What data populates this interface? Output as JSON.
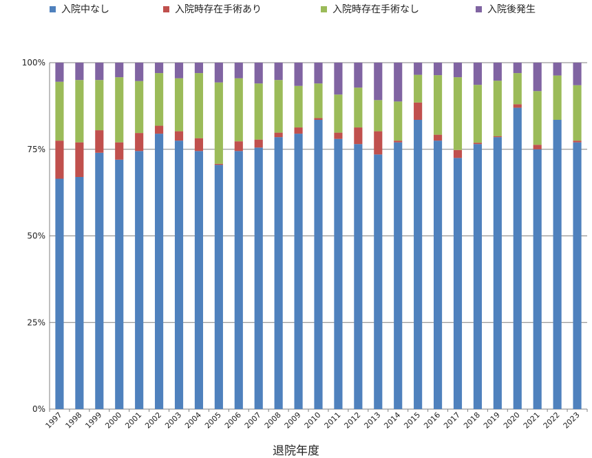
{
  "chart_data": {
    "type": "bar",
    "stacked": true,
    "xlabel": "退院年度",
    "ylabel": "",
    "ylim": [
      0,
      100
    ],
    "y_ticks": [
      "0%",
      "25%",
      "50%",
      "75%",
      "100%"
    ],
    "grid": true,
    "legend_position": "top",
    "categories": [
      "1997",
      "1998",
      "1999",
      "2000",
      "2001",
      "2002",
      "2003",
      "2004",
      "2005",
      "2006",
      "2007",
      "2008",
      "2009",
      "2010",
      "2011",
      "2012",
      "2013",
      "2014",
      "2015",
      "2016",
      "2017",
      "2018",
      "2019",
      "2020",
      "2021",
      "2022",
      "2023"
    ],
    "series": [
      {
        "name": "入院中なし",
        "color": "#4F81BD",
        "values": [
          66.5,
          67,
          74,
          72,
          74.5,
          79.5,
          77.5,
          74.5,
          70.5,
          74.5,
          75.5,
          78.5,
          79.5,
          83.5,
          78,
          76.5,
          73.5,
          77,
          83.5,
          77.5,
          72.5,
          76.5,
          78.5,
          87,
          75,
          83.5,
          77
        ]
      },
      {
        "name": "入院時存在手術あり",
        "color": "#C0504D",
        "values": [
          11,
          10,
          6.5,
          5,
          5.2,
          2.3,
          2.7,
          3.7,
          0.3,
          2.8,
          2.3,
          1.3,
          1.8,
          0.5,
          1.8,
          4.8,
          6.7,
          0.5,
          5,
          1.7,
          2.3,
          0.4,
          0.3,
          1,
          1.3,
          0,
          0.5
        ]
      },
      {
        "name": "入院時存在手術なし",
        "color": "#9BBB59",
        "values": [
          17,
          18,
          14.5,
          18.8,
          15,
          15.2,
          15.3,
          18.8,
          23.5,
          18.2,
          16.2,
          15.2,
          12,
          10,
          11,
          11.5,
          9,
          11.3,
          8,
          17.2,
          21,
          16.7,
          16,
          9,
          15.5,
          12.8,
          16
        ]
      },
      {
        "name": "入院後発生",
        "color": "#8064A2",
        "values": [
          5.5,
          5,
          5,
          4.2,
          5.3,
          3,
          4.5,
          3,
          5.7,
          4.5,
          6,
          5,
          6.7,
          6,
          9.2,
          7.2,
          10.8,
          11.2,
          3.5,
          3.6,
          4.2,
          6.4,
          5.2,
          3,
          8.2,
          3.7,
          6.5
        ]
      }
    ]
  }
}
